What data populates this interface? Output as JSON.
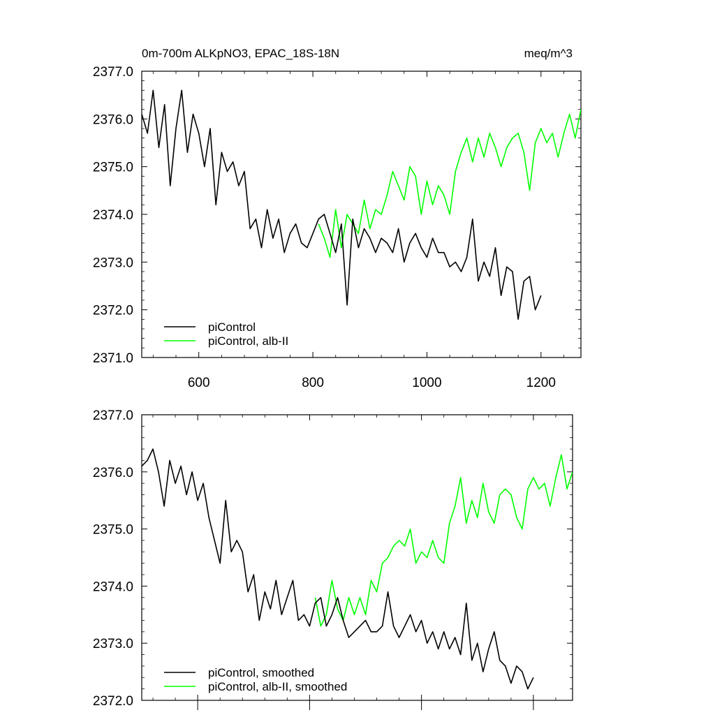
{
  "chart_data": [
    {
      "type": "line",
      "title": "0m-700m ALKpNO3, EPAC_18S-18N",
      "units": "meq/m^3",
      "xlim": [
        500,
        1270
      ],
      "ylim": [
        2371.0,
        2377.0
      ],
      "xticks": [
        {
          "value": 600,
          "label": "600"
        },
        {
          "value": 800,
          "label": "800"
        },
        {
          "value": 1000,
          "label": "1000"
        },
        {
          "value": 1200,
          "label": "1200"
        }
      ],
      "yticks": [
        {
          "value": 2371.0,
          "label": "2371.0"
        },
        {
          "value": 2372.0,
          "label": "2372.0"
        },
        {
          "value": 2373.0,
          "label": "2373.0"
        },
        {
          "value": 2374.0,
          "label": "2374.0"
        },
        {
          "value": 2375.0,
          "label": "2375.0"
        },
        {
          "value": 2376.0,
          "label": "2376.0"
        },
        {
          "value": 2377.0,
          "label": "2377.0"
        }
      ],
      "legend_position": "bottom-left",
      "series": [
        {
          "name": "piControl",
          "color": "#000000",
          "x": [
            500,
            510,
            520,
            530,
            540,
            550,
            560,
            570,
            580,
            590,
            600,
            610,
            620,
            630,
            640,
            650,
            660,
            670,
            680,
            690,
            700,
            710,
            720,
            730,
            740,
            750,
            760,
            770,
            780,
            790,
            800,
            810,
            820,
            830,
            840,
            850,
            860,
            870,
            880,
            890,
            900,
            910,
            920,
            930,
            940,
            950,
            960,
            970,
            980,
            990,
            1000,
            1010,
            1020,
            1030,
            1040,
            1050,
            1060,
            1070,
            1080,
            1090,
            1100,
            1110,
            1120,
            1130,
            1140,
            1150,
            1160,
            1170,
            1180,
            1190,
            1200
          ],
          "values": [
            2376.1,
            2375.7,
            2376.6,
            2375.4,
            2376.3,
            2374.6,
            2375.8,
            2376.6,
            2375.3,
            2376.1,
            2375.7,
            2375.0,
            2375.8,
            2374.2,
            2375.3,
            2374.9,
            2375.1,
            2374.6,
            2374.9,
            2373.7,
            2373.9,
            2373.3,
            2374.1,
            2373.5,
            2373.9,
            2373.2,
            2373.6,
            2373.8,
            2373.4,
            2373.3,
            2373.6,
            2373.9,
            2374.0,
            2373.6,
            2373.2,
            2373.8,
            2372.1,
            2373.9,
            2373.3,
            2373.7,
            2373.5,
            2373.2,
            2373.5,
            2373.4,
            2373.2,
            2373.7,
            2373.0,
            2373.4,
            2373.6,
            2373.3,
            2373.1,
            2373.5,
            2373.2,
            2373.2,
            2372.9,
            2373.0,
            2372.8,
            2373.1,
            2373.9,
            2372.6,
            2373.0,
            2372.7,
            2373.3,
            2372.3,
            2372.9,
            2372.8,
            2371.8,
            2372.6,
            2372.7,
            2372.0,
            2372.3
          ]
        },
        {
          "name": "piControl, alb-II",
          "color": "#00ff00",
          "x": [
            810,
            820,
            830,
            840,
            850,
            860,
            870,
            880,
            890,
            900,
            910,
            920,
            930,
            940,
            950,
            960,
            970,
            980,
            990,
            1000,
            1010,
            1020,
            1030,
            1040,
            1050,
            1060,
            1070,
            1080,
            1090,
            1100,
            1110,
            1120,
            1130,
            1140,
            1150,
            1160,
            1170,
            1180,
            1190,
            1200,
            1210,
            1220,
            1230,
            1240,
            1250,
            1260,
            1270
          ],
          "values": [
            2373.8,
            2373.5,
            2373.1,
            2374.1,
            2373.3,
            2374.0,
            2373.8,
            2373.6,
            2374.3,
            2373.7,
            2374.1,
            2374.0,
            2374.4,
            2374.9,
            2374.6,
            2374.3,
            2375.0,
            2374.8,
            2374.0,
            2374.7,
            2374.2,
            2374.6,
            2374.4,
            2374.0,
            2374.9,
            2375.3,
            2375.6,
            2375.1,
            2375.6,
            2375.2,
            2375.7,
            2375.4,
            2375.0,
            2375.4,
            2375.6,
            2375.7,
            2375.3,
            2374.5,
            2375.5,
            2375.8,
            2375.5,
            2375.7,
            2375.2,
            2375.7,
            2376.1,
            2375.6,
            2376.2
          ]
        }
      ]
    },
    {
      "type": "line",
      "title": "",
      "units": "",
      "xlim": [
        500,
        1270
      ],
      "ylim": [
        2372.0,
        2377.0
      ],
      "xticks": [
        {
          "value": 600,
          "label": ""
        },
        {
          "value": 800,
          "label": ""
        },
        {
          "value": 1000,
          "label": ""
        },
        {
          "value": 1200,
          "label": ""
        }
      ],
      "yticks": [
        {
          "value": 2372.0,
          "label": "2372.0"
        },
        {
          "value": 2373.0,
          "label": "2373.0"
        },
        {
          "value": 2374.0,
          "label": "2374.0"
        },
        {
          "value": 2375.0,
          "label": "2375.0"
        },
        {
          "value": 2376.0,
          "label": "2376.0"
        },
        {
          "value": 2377.0,
          "label": "2377.0"
        }
      ],
      "legend_position": "bottom-left",
      "series": [
        {
          "name": "piControl, smoothed",
          "color": "#000000",
          "x": [
            500,
            510,
            520,
            530,
            540,
            550,
            560,
            570,
            580,
            590,
            600,
            610,
            620,
            630,
            640,
            650,
            660,
            670,
            680,
            690,
            700,
            710,
            720,
            730,
            740,
            750,
            760,
            770,
            780,
            790,
            800,
            810,
            820,
            830,
            840,
            850,
            860,
            870,
            880,
            890,
            900,
            910,
            920,
            930,
            940,
            950,
            960,
            970,
            980,
            990,
            1000,
            1010,
            1020,
            1030,
            1040,
            1050,
            1060,
            1070,
            1080,
            1090,
            1100,
            1110,
            1120,
            1130,
            1140,
            1150,
            1160,
            1170,
            1180,
            1190,
            1200
          ],
          "values": [
            2376.1,
            2376.2,
            2376.4,
            2376.0,
            2375.4,
            2376.2,
            2375.8,
            2376.1,
            2375.6,
            2376.0,
            2375.5,
            2375.8,
            2375.2,
            2374.8,
            2374.4,
            2375.5,
            2374.6,
            2374.8,
            2374.6,
            2373.9,
            2374.2,
            2373.4,
            2373.9,
            2373.6,
            2374.1,
            2373.5,
            2373.8,
            2374.1,
            2373.4,
            2373.5,
            2373.3,
            2373.7,
            2373.8,
            2373.3,
            2373.5,
            2373.8,
            2373.4,
            2373.1,
            2373.2,
            2373.3,
            2373.4,
            2373.2,
            2373.2,
            2373.3,
            2373.9,
            2373.3,
            2373.1,
            2373.3,
            2373.5,
            2373.2,
            2373.4,
            2373.0,
            2373.2,
            2372.9,
            2373.2,
            2372.9,
            2373.1,
            2372.8,
            2373.7,
            2372.7,
            2373.0,
            2372.5,
            2372.9,
            2373.2,
            2372.7,
            2372.6,
            2372.3,
            2372.6,
            2372.5,
            2372.2,
            2372.4
          ]
        },
        {
          "name": "piControl, alb-II, smoothed",
          "color": "#00ff00",
          "x": [
            810,
            820,
            830,
            840,
            850,
            860,
            870,
            880,
            890,
            900,
            910,
            920,
            930,
            940,
            950,
            960,
            970,
            980,
            990,
            1000,
            1010,
            1020,
            1030,
            1040,
            1050,
            1060,
            1070,
            1080,
            1090,
            1100,
            1110,
            1120,
            1130,
            1140,
            1150,
            1160,
            1170,
            1180,
            1190,
            1200,
            1210,
            1220,
            1230,
            1240,
            1250,
            1260,
            1270
          ],
          "values": [
            2373.8,
            2373.3,
            2373.5,
            2374.1,
            2373.6,
            2373.4,
            2373.8,
            2373.5,
            2373.8,
            2373.5,
            2374.1,
            2373.9,
            2374.4,
            2374.5,
            2374.7,
            2374.8,
            2374.7,
            2375.0,
            2374.4,
            2374.6,
            2374.5,
            2374.8,
            2374.5,
            2374.4,
            2375.1,
            2375.4,
            2375.9,
            2375.1,
            2375.5,
            2375.2,
            2375.8,
            2375.3,
            2375.1,
            2375.6,
            2375.7,
            2375.6,
            2375.2,
            2375.0,
            2375.7,
            2375.9,
            2375.7,
            2375.8,
            2375.4,
            2375.9,
            2376.3,
            2375.7,
            2376.0
          ]
        }
      ]
    }
  ]
}
